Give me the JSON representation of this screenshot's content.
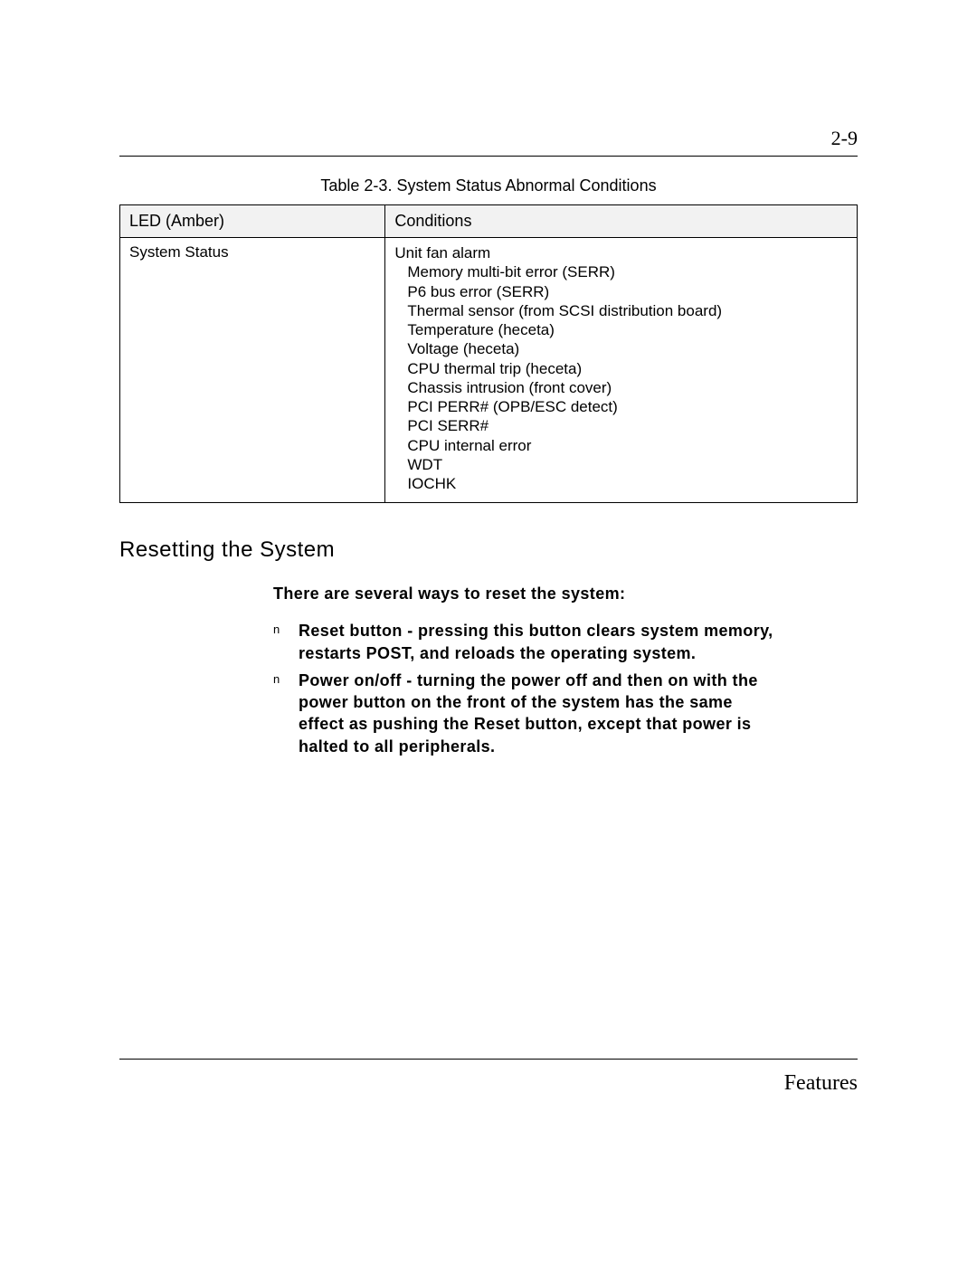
{
  "page_number": "2-9",
  "table": {
    "caption": "Table 2-3.  System Status Abnormal Conditions",
    "columns": [
      "LED (Amber)",
      "Conditions"
    ],
    "row": {
      "led": "System Status",
      "conditions": [
        "Unit fan alarm",
        "Memory multi-bit error (SERR)",
        "P6 bus error (SERR)",
        "Thermal sensor (from SCSI distribution board)",
        "Temperature (heceta)",
        "Voltage (heceta)",
        "CPU thermal trip (heceta)",
        "Chassis intrusion (front cover)",
        "PCI PERR# (OPB/ESC detect)",
        "PCI SERR#",
        "CPU internal error",
        "WDT",
        "IOCHK"
      ]
    }
  },
  "section_heading": "Resetting the System",
  "intro": "There are several ways to reset the system:",
  "bullet_marker": "n",
  "bullets": [
    "Reset button - pressing this button clears system memory, restarts POST, and reloads the operating system.",
    "Power on/off - turning the power off and then on with the power button on the front of the system has the same effect as pushing the Reset button, except that power is halted to all peripherals."
  ],
  "footer": "Features"
}
